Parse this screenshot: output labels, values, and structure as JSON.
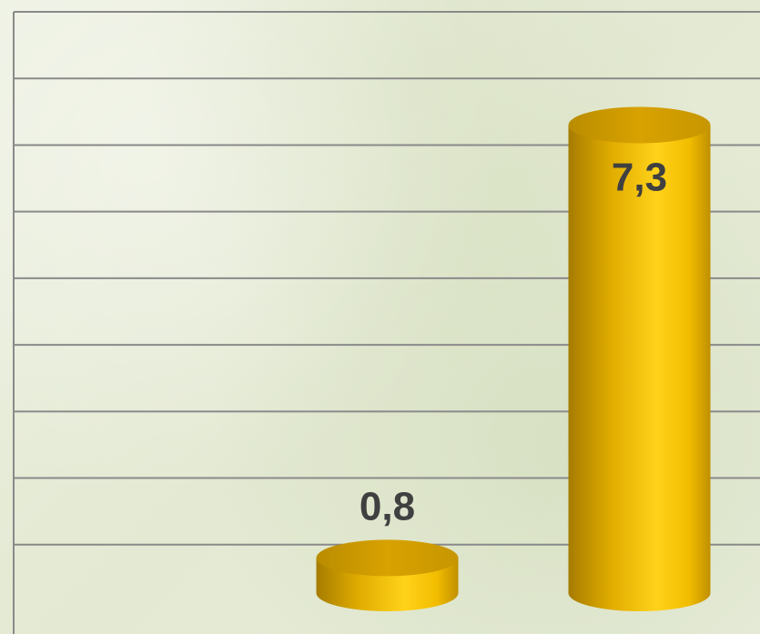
{
  "chart_data": {
    "type": "bar",
    "style": "3d-cylinder",
    "categories": [
      "",
      "",
      ""
    ],
    "values": [
      0,
      0.8,
      7.3
    ],
    "value_labels": [
      "",
      "0,8",
      "7,3"
    ],
    "title": "",
    "xlabel": "",
    "ylabel": "",
    "ylim": [
      0,
      9
    ],
    "grid": true,
    "legend": "none"
  },
  "colors": {
    "bar_body_dark": "#b58a00",
    "bar_body_light": "#ffd21a",
    "bar_top": "#c99a00",
    "gridline": "#8a8a8a",
    "label": "#404040"
  }
}
